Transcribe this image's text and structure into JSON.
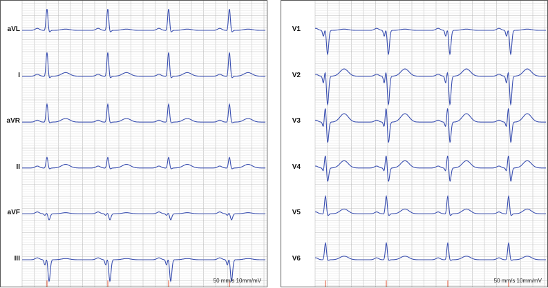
{
  "left_panel": {
    "leads": [
      {
        "label": "aVL",
        "r_mv": 0.9,
        "s_mv": 0.1,
        "t_mv": 0.05
      },
      {
        "label": "I",
        "r_mv": 1.0,
        "s_mv": 0.1,
        "t_mv": 0.15
      },
      {
        "label": "aVR",
        "r_mv": 0.75,
        "s_mv": 0.05,
        "t_mv": 0.15
      },
      {
        "label": "II",
        "r_mv": 0.45,
        "s_mv": 0.05,
        "t_mv": 0.15
      },
      {
        "label": "aVF",
        "r_mv": 0.05,
        "s_mv": 0.25,
        "t_mv": 0.05
      },
      {
        "label": "III",
        "r_mv": 0.1,
        "s_mv": 0.9,
        "t_mv": 0.05
      }
    ],
    "calibration": "50 mm/s  10mm/mV"
  },
  "right_panel": {
    "leads": [
      {
        "label": "V1",
        "r_mv": 0.1,
        "s_mv": 1.0,
        "t_mv": 0.05
      },
      {
        "label": "V2",
        "r_mv": 0.3,
        "s_mv": 1.2,
        "t_mv": 0.3
      },
      {
        "label": "V3",
        "r_mv": 0.7,
        "s_mv": 0.9,
        "t_mv": 0.35
      },
      {
        "label": "V4",
        "r_mv": 0.6,
        "s_mv": 0.6,
        "t_mv": 0.3
      },
      {
        "label": "V5",
        "r_mv": 0.75,
        "s_mv": 0.1,
        "t_mv": 0.2
      },
      {
        "label": "V6",
        "r_mv": 0.7,
        "s_mv": 0.05,
        "t_mv": 0.15
      }
    ],
    "calibration": "50 mm/s  10mm/mV"
  },
  "colors": {
    "trace": "#3a4fb0",
    "grid_major": "#bdbdbd",
    "grid_minor": "#e2e2e2",
    "marker": "#e05030"
  }
}
